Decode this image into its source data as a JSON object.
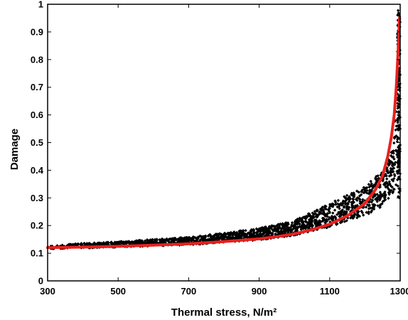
{
  "chart_data": {
    "type": "scatter",
    "title": "",
    "xlabel": "Thermal stress, N/m²",
    "ylabel": "Damage",
    "xlim": [
      300,
      1300
    ],
    "ylim": [
      0,
      1
    ],
    "xticks": [
      300,
      500,
      700,
      900,
      1100,
      1300
    ],
    "yticks": [
      0,
      0.1,
      0.2,
      0.3,
      0.4,
      0.5,
      0.6,
      0.7,
      0.8,
      0.9,
      1
    ],
    "ytick_labels": [
      "0",
      "0.1",
      "0.2",
      "0.3",
      "0.4",
      "0.5",
      "0.6",
      "0.7",
      "0.8",
      "0.9",
      "1"
    ],
    "grid": false,
    "series": [
      {
        "kind": "scatter",
        "color": "#000000",
        "x_range": [
          300,
          1300
        ],
        "lower_envelope": [
          {
            "x": 300,
            "y": 0.115
          },
          {
            "x": 500,
            "y": 0.122
          },
          {
            "x": 700,
            "y": 0.13
          },
          {
            "x": 900,
            "y": 0.148
          },
          {
            "x": 1000,
            "y": 0.165
          },
          {
            "x": 1100,
            "y": 0.195
          },
          {
            "x": 1200,
            "y": 0.235
          },
          {
            "x": 1250,
            "y": 0.27
          },
          {
            "x": 1280,
            "y": 0.32
          },
          {
            "x": 1300,
            "y": 0.38
          }
        ],
        "upper_envelope": [
          {
            "x": 300,
            "y": 0.13
          },
          {
            "x": 500,
            "y": 0.142
          },
          {
            "x": 700,
            "y": 0.158
          },
          {
            "x": 900,
            "y": 0.19
          },
          {
            "x": 1000,
            "y": 0.218
          },
          {
            "x": 1100,
            "y": 0.28
          },
          {
            "x": 1200,
            "y": 0.34
          },
          {
            "x": 1250,
            "y": 0.4
          },
          {
            "x": 1280,
            "y": 0.48
          },
          {
            "x": 1300,
            "y": 0.98
          }
        ]
      },
      {
        "kind": "line",
        "color": "#e8211f",
        "points": [
          {
            "x": 300,
            "y": 0.12
          },
          {
            "x": 400,
            "y": 0.122
          },
          {
            "x": 500,
            "y": 0.125
          },
          {
            "x": 600,
            "y": 0.129
          },
          {
            "x": 700,
            "y": 0.134
          },
          {
            "x": 800,
            "y": 0.142
          },
          {
            "x": 900,
            "y": 0.152
          },
          {
            "x": 950,
            "y": 0.16
          },
          {
            "x": 1000,
            "y": 0.17
          },
          {
            "x": 1050,
            "y": 0.185
          },
          {
            "x": 1100,
            "y": 0.205
          },
          {
            "x": 1150,
            "y": 0.235
          },
          {
            "x": 1200,
            "y": 0.28
          },
          {
            "x": 1230,
            "y": 0.33
          },
          {
            "x": 1250,
            "y": 0.38
          },
          {
            "x": 1265,
            "y": 0.45
          },
          {
            "x": 1275,
            "y": 0.52
          },
          {
            "x": 1283,
            "y": 0.6
          },
          {
            "x": 1289,
            "y": 0.7
          },
          {
            "x": 1293,
            "y": 0.8
          },
          {
            "x": 1296,
            "y": 0.88
          },
          {
            "x": 1298,
            "y": 0.95
          }
        ]
      }
    ]
  }
}
